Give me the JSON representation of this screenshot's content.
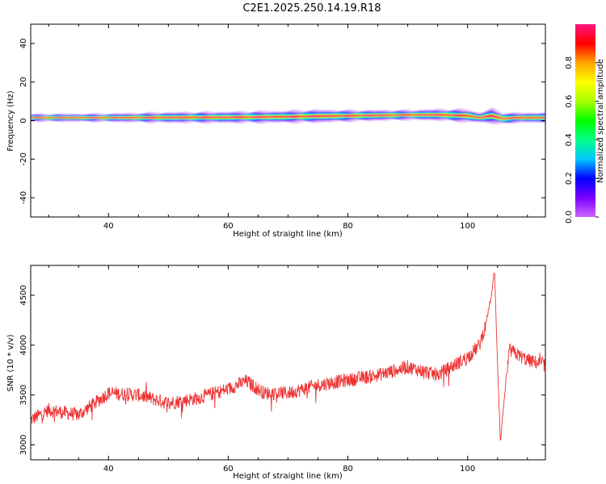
{
  "title": "C2E1.2025.250.14.19.R18",
  "chart_data": [
    {
      "type": "heatmap",
      "xlabel": "Height of straight line (km)",
      "ylabel": "Frequency (Hz)",
      "xlim": [
        27,
        113
      ],
      "ylim": [
        -50,
        50
      ],
      "xticks": [
        40,
        60,
        80,
        100
      ],
      "yticks": [
        40,
        20,
        0,
        -20,
        -40
      ],
      "colorbar": {
        "label": "Normalized spectral amplitude",
        "range": [
          0,
          1
        ],
        "ticks": [
          0.0,
          0.2,
          0.4,
          0.6,
          0.8
        ],
        "colors": [
          "#cc66ff",
          "#7a00ff",
          "#0000ff",
          "#00c8ff",
          "#00ff88",
          "#00ff00",
          "#aaff00",
          "#ffff00",
          "#ffa500",
          "#ff0000",
          "#ff1480"
        ]
      },
      "band": {
        "x": [
          27,
          40,
          50,
          60,
          70,
          75,
          80,
          85,
          90,
          95,
          100,
          102,
          104,
          106,
          108,
          113
        ],
        "center_hz": [
          1.5,
          1.5,
          1.6,
          1.7,
          2.0,
          2.3,
          2.5,
          2.7,
          2.9,
          3.0,
          2.5,
          1.5,
          2.5,
          1.0,
          1.5,
          1.5
        ],
        "half_width_hz": [
          2.0,
          2.2,
          2.8,
          3.0,
          3.2,
          3.4,
          3.0,
          2.8,
          2.6,
          3.0,
          3.4,
          2.5,
          4.0,
          3.0,
          2.6,
          2.8
        ]
      }
    },
    {
      "type": "line",
      "xlabel": "Height of straight line (km)",
      "ylabel": "SNR (10 * v/v)",
      "xlim": [
        27,
        113
      ],
      "ylim": [
        2850,
        4800
      ],
      "xticks": [
        40,
        60,
        80,
        100
      ],
      "yticks": [
        3000,
        3500,
        4000,
        4500
      ],
      "color": "#ee3333",
      "trend": {
        "x": [
          27,
          30,
          35,
          40,
          45,
          50,
          55,
          60,
          63,
          66,
          70,
          75,
          80,
          85,
          90,
          95,
          100,
          102,
          103,
          104,
          104.5,
          105,
          105.5,
          106,
          107,
          110,
          113
        ],
        "y": [
          3250,
          3350,
          3300,
          3520,
          3500,
          3420,
          3470,
          3560,
          3640,
          3520,
          3520,
          3600,
          3650,
          3700,
          3780,
          3700,
          3880,
          4000,
          4200,
          4500,
          4750,
          3800,
          3000,
          3400,
          3950,
          3850,
          3800
        ]
      }
    }
  ]
}
